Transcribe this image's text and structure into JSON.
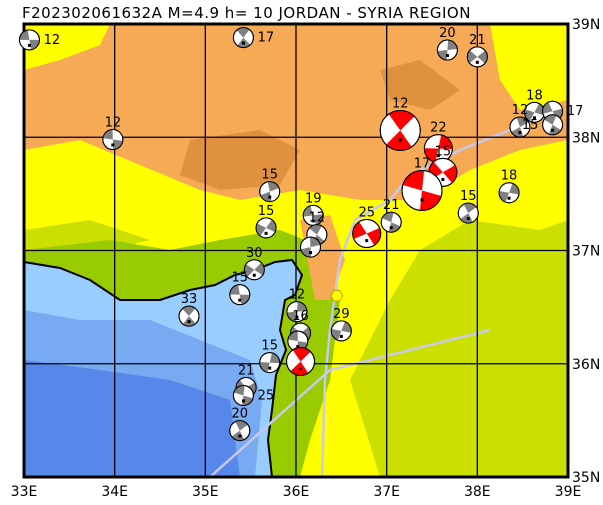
{
  "title": "F202302061632A M=4.9 h= 10 JORDAN - SYRIA REGION",
  "map": {
    "lon_range": [
      33,
      39
    ],
    "lat_range": [
      35,
      39
    ],
    "lon_ticks": [
      "33E",
      "34E",
      "35E",
      "36E",
      "37E",
      "38E",
      "39E"
    ],
    "lat_ticks": [
      "39N",
      "38N",
      "37N",
      "36N",
      "35N"
    ],
    "colors": {
      "high_land": "#f7aa55",
      "peaks": "#e0913f",
      "mid_land": "#ffff00",
      "low_land": "#cce000",
      "coast_plain": "#99cc00",
      "shallow_sea": "#99ccff",
      "sea": "#77aaf0",
      "deep_sea": "#5588e8",
      "faults": "#c8c8f0",
      "compressional_red": "#ff0000",
      "quadrant_gray": "#808080"
    },
    "epicenter": {
      "lon": 36.45,
      "lat": 36.6,
      "marker": "yellow-hexagon"
    },
    "events": [
      {
        "depth": "12",
        "lon": 33.06,
        "lat": 38.86,
        "color": "gray"
      },
      {
        "depth": "17",
        "lon": 35.42,
        "lat": 38.88,
        "color": "gray"
      },
      {
        "depth": "20",
        "lon": 37.67,
        "lat": 38.77,
        "color": "gray"
      },
      {
        "depth": "21",
        "lon": 38.0,
        "lat": 38.71,
        "color": "gray"
      },
      {
        "depth": "12",
        "lon": 33.98,
        "lat": 37.98,
        "color": "gray"
      },
      {
        "depth": "12",
        "lon": 37.15,
        "lat": 38.06,
        "color": "red",
        "big": true
      },
      {
        "depth": "22",
        "lon": 37.57,
        "lat": 37.9,
        "color": "red"
      },
      {
        "depth": "15",
        "lon": 37.62,
        "lat": 37.69,
        "color": "red"
      },
      {
        "depth": "17",
        "lon": 37.39,
        "lat": 37.53,
        "color": "red",
        "big": true
      },
      {
        "depth": "15",
        "lon": 37.9,
        "lat": 37.33,
        "color": "gray"
      },
      {
        "depth": "18",
        "lon": 38.35,
        "lat": 37.51,
        "color": "gray"
      },
      {
        "depth": "25",
        "lon": 36.78,
        "lat": 37.15,
        "color": "red"
      },
      {
        "depth": "21",
        "lon": 37.05,
        "lat": 37.25,
        "color": "gray"
      },
      {
        "depth": "12",
        "lon": 38.47,
        "lat": 38.09,
        "color": "gray"
      },
      {
        "depth": "18",
        "lon": 38.63,
        "lat": 38.22,
        "color": "gray"
      },
      {
        "depth": "17",
        "lon": 38.83,
        "lat": 38.23,
        "color": "gray"
      },
      {
        "depth": "15",
        "lon": 38.83,
        "lat": 38.11,
        "color": "gray"
      },
      {
        "depth": "15",
        "lon": 35.71,
        "lat": 37.52,
        "color": "gray"
      },
      {
        "depth": "15",
        "lon": 35.67,
        "lat": 37.2,
        "color": "gray"
      },
      {
        "depth": "19",
        "lon": 36.19,
        "lat": 37.31,
        "color": "gray"
      },
      {
        "depth": "12",
        "lon": 36.23,
        "lat": 37.14,
        "color": "gray"
      },
      {
        "depth": "",
        "lon": 36.16,
        "lat": 37.03,
        "color": "gray"
      },
      {
        "depth": "30",
        "lon": 35.54,
        "lat": 36.83,
        "color": "gray"
      },
      {
        "depth": "15",
        "lon": 35.38,
        "lat": 36.61,
        "color": "gray"
      },
      {
        "depth": "33",
        "lon": 34.82,
        "lat": 36.42,
        "color": "gray"
      },
      {
        "depth": "12",
        "lon": 36.01,
        "lat": 36.46,
        "color": "gray"
      },
      {
        "depth": "16",
        "lon": 36.05,
        "lat": 36.27,
        "color": "gray"
      },
      {
        "depth": "",
        "lon": 36.02,
        "lat": 36.2,
        "color": "gray"
      },
      {
        "depth": "",
        "lon": 36.05,
        "lat": 36.02,
        "color": "red"
      },
      {
        "depth": "15",
        "lon": 35.71,
        "lat": 36.01,
        "color": "gray"
      },
      {
        "depth": "21",
        "lon": 35.45,
        "lat": 35.79,
        "color": "gray"
      },
      {
        "depth": "25",
        "lon": 35.42,
        "lat": 35.72,
        "color": "gray"
      },
      {
        "depth": "20",
        "lon": 35.38,
        "lat": 35.41,
        "color": "gray"
      },
      {
        "depth": "29",
        "lon": 36.5,
        "lat": 36.29,
        "color": "gray"
      }
    ]
  }
}
